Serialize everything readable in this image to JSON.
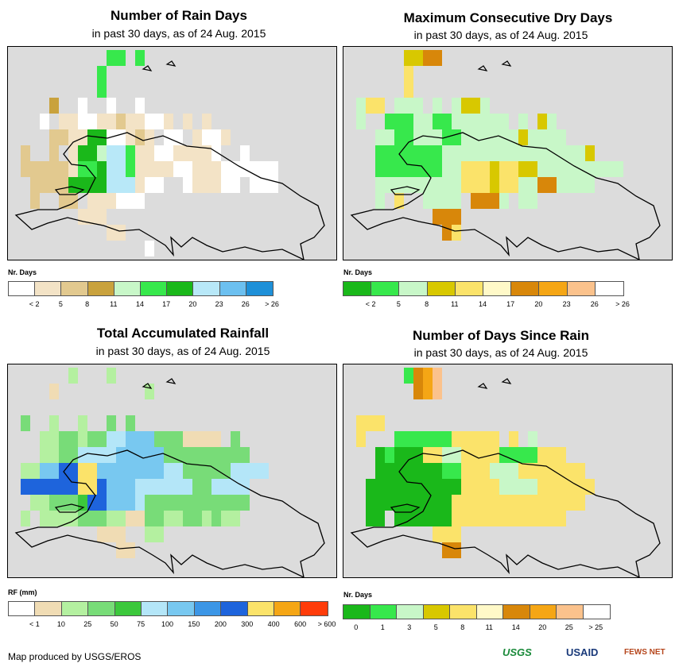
{
  "panels": [
    {
      "id": "rain-days",
      "title": "Number of Rain Days",
      "subtitle": "in past 30 days, as of 24 Aug. 2015",
      "legend_title": "Nr. Days",
      "legend_colors": [
        "#ffffff",
        "#f3e3c6",
        "#e2c98f",
        "#c9a23d",
        "#c8f7c8",
        "#37e84c",
        "#1ab81a",
        "#b8e8f8",
        "#6cc0f0",
        "#1e90d8"
      ],
      "legend_labels": [
        "< 2",
        "5",
        "8",
        "11",
        "14",
        "17",
        "20",
        "23",
        "26",
        "> 26"
      ]
    },
    {
      "id": "max-dry-days",
      "title": "Maximum Consecutive Dry Days",
      "subtitle": "in past 30 days, as of 24 Aug. 2015",
      "legend_title": "Nr. Days",
      "legend_colors": [
        "#1ab81a",
        "#37e84c",
        "#c8f7c8",
        "#d8c800",
        "#fbe36a",
        "#fff9c8",
        "#d8870a",
        "#f5a615",
        "#fbc28c",
        "#ffffff"
      ],
      "legend_labels": [
        "< 2",
        "5",
        "8",
        "11",
        "14",
        "17",
        "20",
        "23",
        "26",
        "> 26"
      ]
    },
    {
      "id": "total-rainfall",
      "title": "Total Accumulated Rainfall",
      "subtitle": "in past 30 days, as of 24 Aug. 2015",
      "legend_title": "RF (mm)",
      "legend_colors": [
        "#ffffff",
        "#f0dcb4",
        "#b4f0a0",
        "#78dc78",
        "#3cc83c",
        "#b4e6f8",
        "#78c8f0",
        "#3c96e6",
        "#1e64dc",
        "#fbe36a",
        "#f5a615",
        "#ff3c0a"
      ],
      "legend_labels": [
        "< 1",
        "10",
        "25",
        "50",
        "75",
        "100",
        "150",
        "200",
        "300",
        "400",
        "600",
        "> 600"
      ]
    },
    {
      "id": "days-since-rain",
      "title": "Number of Days Since Rain",
      "subtitle": "in past 30 days, as of 24 Aug. 2015",
      "legend_title": "Nr. Days",
      "legend_colors": [
        "#1ab81a",
        "#37e84c",
        "#c8f7c8",
        "#d8c800",
        "#fbe36a",
        "#fff9c8",
        "#d8870a",
        "#f5a615",
        "#fbc28c",
        "#ffffff"
      ],
      "legend_labels": [
        "0",
        "1",
        "3",
        "5",
        "8",
        "11",
        "14",
        "20",
        "25",
        "> 25"
      ]
    }
  ],
  "footer": "Map produced by USGS/EROS",
  "logos": [
    "USGS",
    "USAID",
    "FEWS NET"
  ]
}
